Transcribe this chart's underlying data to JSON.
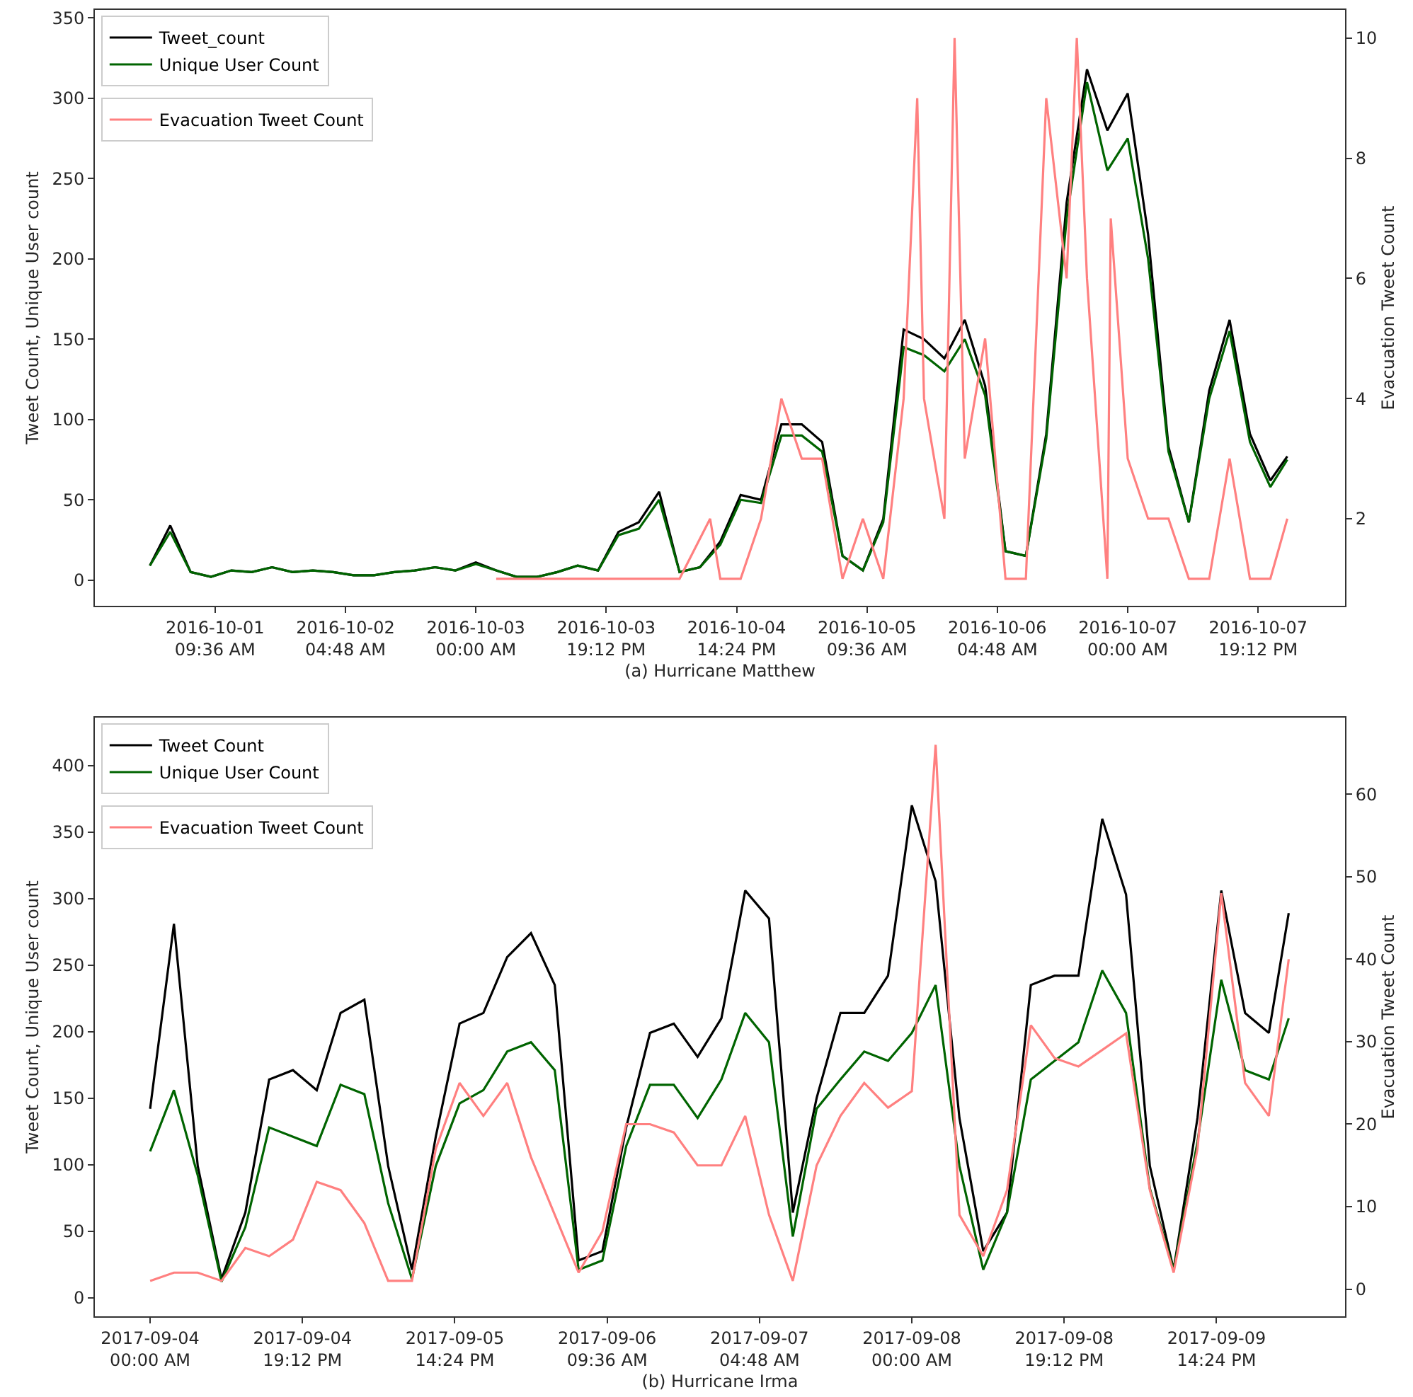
{
  "chart_data": [
    {
      "type": "line",
      "xlabel": "(a) Hurricane Matthew",
      "ylabel": "Tweet Count, Unique User count",
      "y2label": "Evacuation Tweet Count",
      "x": [
        "2016-10-01T00:00",
        "2016-10-01T03:00",
        "2016-10-01T06:00",
        "2016-10-01T09:00",
        "2016-10-01T12:00",
        "2016-10-01T15:00",
        "2016-10-01T18:00",
        "2016-10-01T21:00",
        "2016-10-02T00:00",
        "2016-10-02T03:00",
        "2016-10-02T06:00",
        "2016-10-02T09:00",
        "2016-10-02T12:00",
        "2016-10-02T15:00",
        "2016-10-02T18:00",
        "2016-10-02T21:00",
        "2016-10-03T00:00",
        "2016-10-03T03:00",
        "2016-10-03T06:00",
        "2016-10-03T09:00",
        "2016-10-03T12:00",
        "2016-10-03T15:00",
        "2016-10-03T18:00",
        "2016-10-03T21:00",
        "2016-10-04T00:00",
        "2016-10-04T03:00",
        "2016-10-04T06:00",
        "2016-10-04T09:00",
        "2016-10-04T12:00",
        "2016-10-04T15:00",
        "2016-10-04T18:00",
        "2016-10-04T21:00",
        "2016-10-05T00:00",
        "2016-10-05T03:00",
        "2016-10-05T06:00",
        "2016-10-05T09:00",
        "2016-10-05T12:00",
        "2016-10-05T15:00",
        "2016-10-05T18:00",
        "2016-10-05T21:00",
        "2016-10-06T00:00",
        "2016-10-06T03:00",
        "2016-10-06T06:00",
        "2016-10-06T09:00",
        "2016-10-06T12:00",
        "2016-10-06T15:00",
        "2016-10-06T18:00",
        "2016-10-06T21:00",
        "2016-10-07T00:00",
        "2016-10-07T03:00",
        "2016-10-07T06:00",
        "2016-10-07T09:00",
        "2016-10-07T12:00",
        "2016-10-07T15:00",
        "2016-10-07T18:00",
        "2016-10-07T21:00",
        "2016-10-07T23:30"
      ],
      "series": [
        {
          "name": "Tweet_count",
          "color": "#000000",
          "values": [
            9,
            34,
            5,
            2,
            6,
            5,
            8,
            5,
            6,
            5,
            3,
            3,
            5,
            6,
            8,
            6,
            11,
            6,
            2,
            2,
            5,
            9,
            6,
            30,
            36,
            55,
            5,
            8,
            24,
            53,
            50,
            97,
            97,
            86,
            15,
            6,
            38,
            156,
            150,
            138,
            162,
            121,
            18,
            15,
            91,
            235,
            318,
            280,
            303,
            215,
            83,
            36,
            118,
            162,
            91,
            62,
            77
          ]
        },
        {
          "name": "Unique User Count",
          "color": "#006400",
          "values": [
            9,
            30,
            5,
            2,
            6,
            5,
            8,
            5,
            6,
            5,
            3,
            3,
            5,
            6,
            8,
            6,
            10,
            6,
            2,
            2,
            5,
            9,
            6,
            28,
            32,
            50,
            5,
            8,
            22,
            50,
            48,
            90,
            90,
            80,
            15,
            6,
            36,
            145,
            140,
            130,
            150,
            115,
            18,
            15,
            88,
            225,
            310,
            255,
            275,
            200,
            80,
            36,
            113,
            155,
            86,
            58,
            75
          ]
        },
        {
          "name": "Evacuation Tweet Count",
          "color": "#ff8080",
          "axis": "y2",
          "x": [
            "2016-10-03T03:00",
            "2016-10-04T06:00",
            "2016-10-04T10:30",
            "2016-10-04T12:00",
            "2016-10-04T15:00",
            "2016-10-04T18:00",
            "2016-10-04T21:00",
            "2016-10-05T00:00",
            "2016-10-05T03:00",
            "2016-10-05T06:00",
            "2016-10-05T09:00",
            "2016-10-05T12:00",
            "2016-10-05T15:00",
            "2016-10-05T17:00",
            "2016-10-05T18:00",
            "2016-10-05T21:00",
            "2016-10-05T22:30",
            "2016-10-06T00:00",
            "2016-10-06T03:00",
            "2016-10-06T06:00",
            "2016-10-06T09:00",
            "2016-10-06T12:00",
            "2016-10-06T15:00",
            "2016-10-06T16:30",
            "2016-10-06T18:00",
            "2016-10-06T21:00",
            "2016-10-06T21:30",
            "2016-10-07T00:00",
            "2016-10-07T03:00",
            "2016-10-07T06:00",
            "2016-10-07T09:00",
            "2016-10-07T12:00",
            "2016-10-07T15:00",
            "2016-10-07T18:00",
            "2016-10-07T21:00",
            "2016-10-07T23:30"
          ],
          "values": [
            1,
            1,
            2,
            1,
            1,
            2,
            4,
            3,
            3,
            1,
            2,
            1,
            4,
            9,
            4,
            2,
            10,
            3,
            5,
            1,
            1,
            9,
            6,
            10,
            6,
            1,
            7,
            3,
            2,
            2,
            1,
            1,
            3,
            1,
            1,
            2
          ]
        }
      ],
      "xlim": [
        "2016-09-30T15:54",
        "2016-10-08T08:00"
      ],
      "xticks": [
        {
          "value": "2016-10-01T09:36",
          "label": "2016-10-01\n09:36 AM"
        },
        {
          "value": "2016-10-02T04:48",
          "label": "2016-10-02\n04:48 AM"
        },
        {
          "value": "2016-10-03T00:00",
          "label": "2016-10-03\n00:00 AM"
        },
        {
          "value": "2016-10-03T19:12",
          "label": "2016-10-03\n19:12 PM"
        },
        {
          "value": "2016-10-04T14:24",
          "label": "2016-10-04\n14:24 PM"
        },
        {
          "value": "2016-10-05T09:36",
          "label": "2016-10-05\n09:36 AM"
        },
        {
          "value": "2016-10-06T04:48",
          "label": "2016-10-06\n04:48 AM"
        },
        {
          "value": "2016-10-07T00:00",
          "label": "2016-10-07\n00:00 AM"
        },
        {
          "value": "2016-10-07T19:12",
          "label": "2016-10-07\n19:12 PM"
        }
      ],
      "ylim": [
        -16,
        355
      ],
      "yticks": [
        0,
        50,
        100,
        150,
        200,
        250,
        300,
        350
      ],
      "y2lim": [
        0.55,
        10.47
      ],
      "y2ticks": [
        2,
        4,
        6,
        8,
        10
      ],
      "grid": false,
      "legend": "top left"
    },
    {
      "type": "line",
      "xlabel": "(b) Hurricane Irma",
      "ylabel": "Tweet Count, Unique User count",
      "y2label": "Evacuation Tweet Count",
      "x": [
        "2017-09-04T00:00",
        "2017-09-04T03:00",
        "2017-09-04T06:00",
        "2017-09-04T09:00",
        "2017-09-04T12:00",
        "2017-09-04T15:00",
        "2017-09-04T18:00",
        "2017-09-04T21:00",
        "2017-09-05T00:00",
        "2017-09-05T03:00",
        "2017-09-05T06:00",
        "2017-09-05T09:00",
        "2017-09-05T12:00",
        "2017-09-05T15:00",
        "2017-09-05T18:00",
        "2017-09-05T21:00",
        "2017-09-06T00:00",
        "2017-09-06T03:00",
        "2017-09-06T06:00",
        "2017-09-06T09:00",
        "2017-09-06T12:00",
        "2017-09-06T15:00",
        "2017-09-06T18:00",
        "2017-09-06T21:00",
        "2017-09-07T00:00",
        "2017-09-07T03:00",
        "2017-09-07T06:00",
        "2017-09-07T09:00",
        "2017-09-07T12:00",
        "2017-09-07T15:00",
        "2017-09-07T18:00",
        "2017-09-07T21:00",
        "2017-09-08T00:00",
        "2017-09-08T03:00",
        "2017-09-08T06:00",
        "2017-09-08T09:00",
        "2017-09-08T12:00",
        "2017-09-08T15:00",
        "2017-09-08T18:00",
        "2017-09-08T21:00",
        "2017-09-09T00:00",
        "2017-09-09T03:00",
        "2017-09-09T06:00",
        "2017-09-09T09:00",
        "2017-09-09T12:00",
        "2017-09-09T15:00",
        "2017-09-09T18:00",
        "2017-09-09T21:00",
        "2017-09-09T23:30"
      ],
      "series": [
        {
          "name": "Tweet Count",
          "color": "#000000",
          "values": [
            142,
            281,
            99,
            14,
            64,
            164,
            171,
            156,
            214,
            224,
            99,
            21,
            121,
            206,
            214,
            256,
            274,
            235,
            28,
            35,
            128,
            199,
            206,
            181,
            210,
            306,
            285,
            64,
            150,
            214,
            214,
            242,
            370,
            313,
            135,
            35,
            64,
            235,
            242,
            242,
            360,
            303,
            99,
            21,
            135,
            306,
            214,
            199,
            289
          ]
        },
        {
          "name": "Unique User Count",
          "color": "#006400",
          "values": [
            110,
            156,
            92,
            12,
            53,
            128,
            121,
            114,
            160,
            153,
            71,
            14,
            99,
            146,
            156,
            185,
            192,
            171,
            21,
            28,
            114,
            160,
            160,
            135,
            164,
            214,
            192,
            46,
            142,
            164,
            185,
            178,
            199,
            235,
            99,
            21,
            64,
            164,
            178,
            192,
            246,
            214,
            82,
            21,
            117,
            239,
            171,
            164,
            210
          ]
        },
        {
          "name": "Evacuation Tweet Count",
          "color": "#ff8080",
          "axis": "y2",
          "values": [
            1,
            2,
            2,
            1,
            5,
            4,
            6,
            13,
            12,
            8,
            1,
            1,
            17,
            25,
            21,
            25,
            16,
            9,
            2,
            7,
            20,
            20,
            19,
            15,
            15,
            21,
            9,
            1,
            15,
            21,
            25,
            22,
            24,
            66,
            9,
            4,
            12,
            32,
            28,
            27,
            29,
            31,
            12,
            2,
            17,
            48,
            25,
            21,
            40
          ]
        }
      ],
      "xlim": [
        "2017-09-03T17:02",
        "2017-09-10T06:36"
      ],
      "xticks": [
        {
          "value": "2017-09-04T00:00",
          "label": "2017-09-04\n00:00 AM"
        },
        {
          "value": "2017-09-04T19:12",
          "label": "2017-09-04\n19:12 PM"
        },
        {
          "value": "2017-09-05T14:24",
          "label": "2017-09-05\n14:24 PM"
        },
        {
          "value": "2017-09-06T09:36",
          "label": "2017-09-06\n09:36 AM"
        },
        {
          "value": "2017-09-07T04:48",
          "label": "2017-09-07\n04:48 AM"
        },
        {
          "value": "2017-09-08T00:00",
          "label": "2017-09-08\n00:00 AM"
        },
        {
          "value": "2017-09-08T19:12",
          "label": "2017-09-08\n19:12 PM"
        },
        {
          "value": "2017-09-09T14:24",
          "label": "2017-09-09\n14:24 PM"
        }
      ],
      "ylim": [
        -14,
        436
      ],
      "yticks": [
        0,
        50,
        100,
        150,
        200,
        250,
        300,
        350,
        400
      ],
      "y2lim": [
        -3.3,
        69.3
      ],
      "y2ticks": [
        0,
        10,
        20,
        30,
        40,
        50,
        60
      ],
      "grid": false,
      "legend": "top left"
    }
  ]
}
